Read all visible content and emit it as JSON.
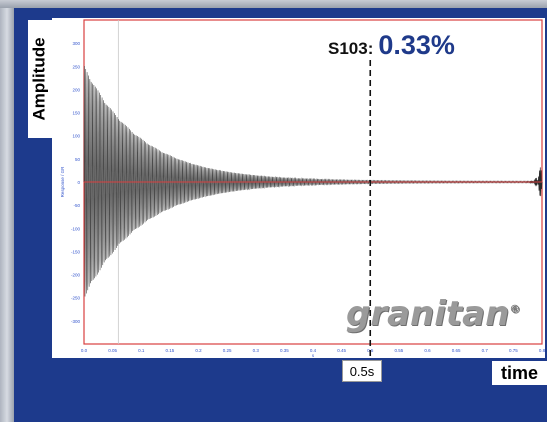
{
  "chart_data": {
    "type": "line",
    "title": "",
    "xlabel": "time",
    "ylabel": "Amplitude",
    "xlim": [
      0,
      0.8
    ],
    "ylim": [
      -350,
      350
    ],
    "grid": false,
    "x_ticks": [
      "0.0",
      "0.05",
      "0.1",
      "0.15",
      "0.2",
      "0.25",
      "0.3",
      "0.35",
      "0.4",
      "0.45",
      "0.5",
      "0.55",
      "0.6",
      "0.65",
      "0.7",
      "0.75",
      "0.8"
    ],
    "y_ticks": [
      "300",
      "250",
      "200",
      "150",
      "100",
      "50",
      "0",
      "-50",
      "-100",
      "-150",
      "-200",
      "-250",
      "-300"
    ],
    "inner_ylabel": "Response / GR",
    "inner_xlabel": "s",
    "series": [
      {
        "kind": "decaying-oscillation",
        "initial_amplitude": 250,
        "envelope_time_constant_s": 0.1,
        "color": "#2b2b2b"
      }
    ],
    "annotations": [
      {
        "x": 0.5,
        "text": "0.5s",
        "style": "dashed-vertical"
      },
      {
        "name": "S103:",
        "value": "0.33%"
      }
    ]
  },
  "logo": {
    "text": "granitan",
    "mark": "®"
  }
}
